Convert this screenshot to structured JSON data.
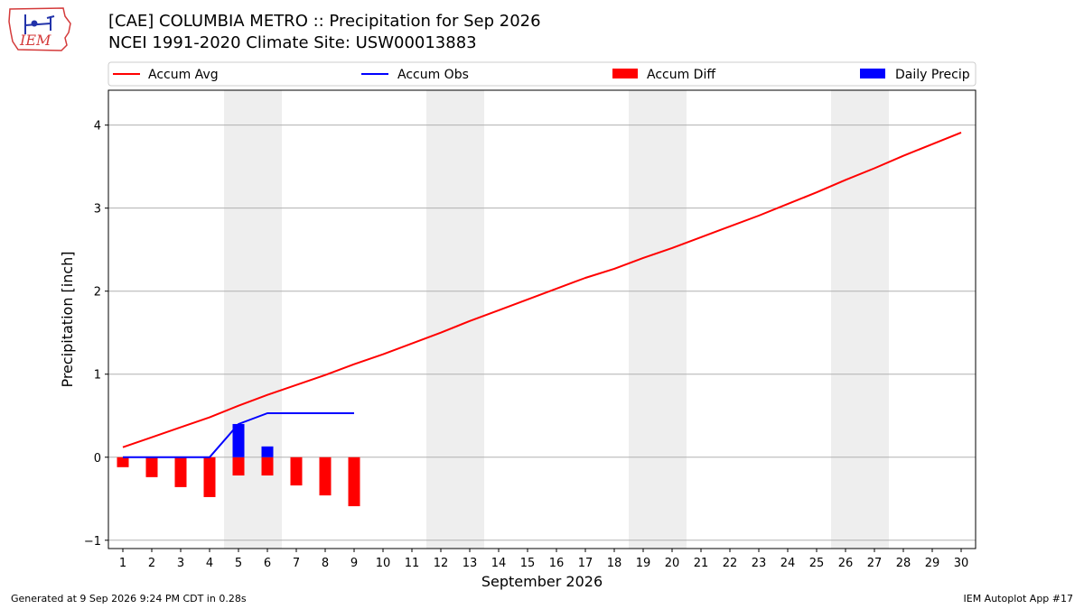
{
  "header": {
    "title_line1": "[CAE] COLUMBIA METRO :: Precipitation for Sep 2026",
    "title_line2": "NCEI 1991-2020 Climate Site: USW00013883",
    "logo_text": "IEM"
  },
  "footer": {
    "left": "Generated at 9 Sep 2026 9:24 PM CDT in 0.28s",
    "right": "IEM Autoplot App #17"
  },
  "colors": {
    "avg": "#ff0000",
    "obs": "#0000ff",
    "diff": "#ff0000",
    "daily": "#0000ff",
    "weekend": "#eeeeee",
    "grid": "#b0b0b0"
  },
  "chart_data": {
    "type": "line",
    "xlabel": "September 2026",
    "ylabel": "Precipitation [inch]",
    "x": [
      1,
      2,
      3,
      4,
      5,
      6,
      7,
      8,
      9,
      10,
      11,
      12,
      13,
      14,
      15,
      16,
      17,
      18,
      19,
      20,
      21,
      22,
      23,
      24,
      25,
      26,
      27,
      28,
      29,
      30
    ],
    "xlim": [
      0.5,
      30.5
    ],
    "ylim": [
      -1.1,
      4.42
    ],
    "yticks": [
      -1,
      0,
      1,
      2,
      3,
      4
    ],
    "grid": "y",
    "legend_position": "top",
    "legend": [
      "Accum Avg",
      "Accum Obs",
      "Accum Diff",
      "Daily Precip"
    ],
    "weekend_bands": [
      [
        4.5,
        6.5
      ],
      [
        11.5,
        13.5
      ],
      [
        18.5,
        20.5
      ],
      [
        25.5,
        27.5
      ]
    ],
    "series": [
      {
        "name": "Accum Avg",
        "kind": "line",
        "x": [
          1,
          2,
          3,
          4,
          5,
          6,
          7,
          8,
          9,
          10,
          11,
          12,
          13,
          14,
          15,
          16,
          17,
          18,
          19,
          20,
          21,
          22,
          23,
          24,
          25,
          26,
          27,
          28,
          29,
          30
        ],
        "values": [
          0.12,
          0.24,
          0.36,
          0.48,
          0.62,
          0.75,
          0.87,
          0.99,
          1.12,
          1.24,
          1.37,
          1.5,
          1.64,
          1.77,
          1.9,
          2.03,
          2.16,
          2.27,
          2.4,
          2.52,
          2.65,
          2.78,
          2.91,
          3.05,
          3.19,
          3.34,
          3.48,
          3.63,
          3.77,
          3.91
        ]
      },
      {
        "name": "Accum Obs",
        "kind": "line",
        "x": [
          1,
          2,
          3,
          4,
          5,
          6,
          7,
          8,
          9
        ],
        "values": [
          0.0,
          0.0,
          0.0,
          0.0,
          0.4,
          0.53,
          0.53,
          0.53,
          0.53
        ]
      },
      {
        "name": "Accum Diff",
        "kind": "bar",
        "x": [
          1,
          2,
          3,
          4,
          5,
          6,
          7,
          8,
          9
        ],
        "values": [
          -0.12,
          -0.24,
          -0.36,
          -0.48,
          -0.22,
          -0.22,
          -0.34,
          -0.46,
          -0.59
        ]
      },
      {
        "name": "Daily Precip",
        "kind": "bar",
        "x": [
          5,
          6
        ],
        "values": [
          0.4,
          0.13
        ]
      }
    ]
  }
}
